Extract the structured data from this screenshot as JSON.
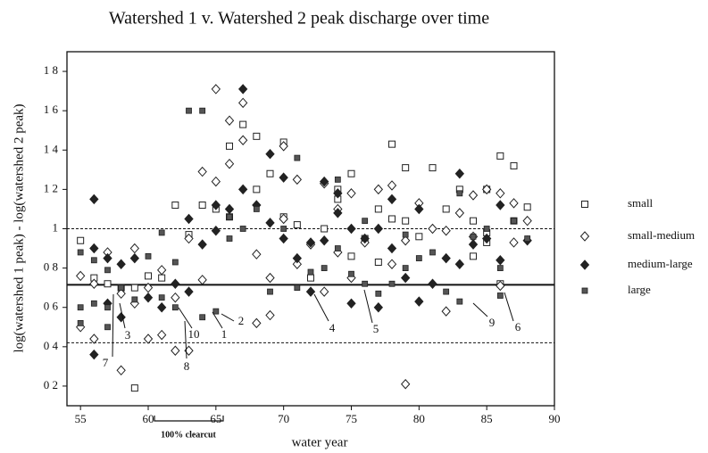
{
  "chart_data": {
    "type": "scatter",
    "title": "Watershed 1 v. Watershed 2 peak discharge over time",
    "xlabel": "water year",
    "ylabel": "log(watershed 1 peak) - log(watershed 2 peak)",
    "xlim": [
      54,
      90
    ],
    "ylim": [
      0.1,
      1.9
    ],
    "xticks": [
      55,
      60,
      65,
      70,
      75,
      80,
      85,
      90
    ],
    "yticks": [
      {
        "value": 0.2,
        "label": "0 2"
      },
      {
        "value": 0.4,
        "label": "0 4"
      },
      {
        "value": 0.6,
        "label": "0 6"
      },
      {
        "value": 0.8,
        "label": "0 8"
      },
      1,
      {
        "value": 1.2,
        "label": "1 2"
      },
      {
        "value": 1.4,
        "label": "1 4"
      },
      {
        "value": 1.6,
        "label": "1 6"
      },
      {
        "value": 1.8,
        "label": "1 8"
      }
    ],
    "legend": "right",
    "reference_lines": [
      {
        "y": 1.0,
        "style": "dashed"
      },
      {
        "y": 0.715,
        "style": "solid"
      },
      {
        "y": 0.42,
        "style": "dashed"
      }
    ],
    "annotations": [
      "7",
      "3",
      "8",
      "10",
      "1",
      "2",
      "4",
      "5",
      "9",
      "6"
    ],
    "bracket_label": "100% clearcut",
    "series": [
      {
        "name": "small",
        "marker": "open-square",
        "color": "#222",
        "x": [
          55,
          56,
          57,
          58,
          59,
          59,
          60,
          61,
          62,
          63,
          64,
          65,
          66,
          66,
          67,
          68,
          68,
          69,
          70,
          70,
          71,
          72,
          73,
          74,
          74,
          75,
          75,
          76,
          77,
          77,
          78,
          78,
          79,
          79,
          80,
          81,
          82,
          83,
          84,
          85,
          85,
          86,
          86,
          87,
          87,
          88,
          85,
          84
        ],
        "values": [
          0.94,
          0.75,
          0.72,
          0.7,
          0.19,
          0.7,
          0.76,
          0.75,
          1.12,
          0.97,
          1.12,
          1.1,
          1.42,
          1.06,
          1.53,
          1.47,
          1.2,
          1.28,
          1.44,
          1.06,
          1.02,
          0.75,
          1.0,
          1.15,
          1.2,
          1.28,
          0.86,
          0.95,
          1.1,
          0.83,
          1.43,
          1.05,
          1.31,
          1.04,
          0.96,
          1.31,
          1.1,
          1.2,
          1.04,
          1.2,
          0.93,
          1.37,
          0.72,
          1.32,
          1.04,
          1.11,
          0.98,
          0.86
        ]
      },
      {
        "name": "small-medium",
        "marker": "open-diamond",
        "color": "#222",
        "x": [
          55,
          55,
          56,
          56,
          57,
          58,
          58,
          59,
          59,
          60,
          60,
          61,
          61,
          62,
          62,
          63,
          63,
          64,
          64,
          65,
          65,
          66,
          66,
          67,
          67,
          68,
          68,
          69,
          69,
          70,
          70,
          71,
          71,
          72,
          73,
          73,
          74,
          74,
          75,
          75,
          76,
          77,
          78,
          78,
          79,
          79,
          80,
          81,
          82,
          82,
          83,
          84,
          84,
          85,
          86,
          86,
          87,
          87,
          88
        ],
        "values": [
          0.76,
          0.5,
          0.44,
          0.72,
          0.88,
          0.28,
          0.67,
          0.9,
          0.62,
          0.44,
          0.7,
          0.46,
          0.79,
          0.38,
          0.65,
          0.38,
          0.95,
          1.29,
          0.74,
          1.71,
          1.24,
          1.55,
          1.33,
          1.64,
          1.45,
          0.87,
          0.52,
          0.56,
          0.75,
          1.42,
          1.05,
          1.25,
          0.82,
          0.92,
          0.68,
          1.23,
          0.88,
          1.1,
          1.18,
          0.75,
          0.93,
          1.2,
          1.22,
          0.82,
          0.21,
          0.94,
          1.13,
          1.0,
          0.58,
          0.99,
          1.08,
          0.96,
          1.17,
          1.2,
          1.18,
          0.71,
          1.13,
          0.93,
          1.04
        ]
      },
      {
        "name": "medium-large",
        "marker": "filled-diamond",
        "color": "#222",
        "x": [
          56,
          56,
          56,
          57,
          57,
          58,
          58,
          59,
          60,
          61,
          62,
          63,
          63,
          64,
          65,
          65,
          66,
          67,
          67,
          68,
          69,
          69,
          70,
          70,
          71,
          72,
          72,
          73,
          73,
          74,
          74,
          75,
          75,
          76,
          77,
          77,
          78,
          78,
          79,
          80,
          80,
          81,
          82,
          83,
          83,
          84,
          85,
          86,
          86,
          88
        ],
        "values": [
          1.15,
          0.36,
          0.9,
          0.62,
          0.85,
          0.55,
          0.82,
          0.85,
          0.65,
          0.6,
          0.72,
          1.05,
          0.68,
          0.92,
          0.99,
          1.12,
          1.1,
          1.71,
          1.2,
          1.12,
          1.38,
          1.03,
          1.26,
          0.95,
          0.85,
          0.93,
          0.68,
          1.24,
          0.94,
          1.18,
          1.08,
          1.0,
          0.62,
          0.95,
          0.6,
          1.0,
          1.15,
          0.9,
          0.75,
          1.1,
          0.63,
          0.72,
          0.85,
          1.28,
          0.82,
          0.92,
          0.95,
          1.12,
          0.84,
          0.94
        ]
      },
      {
        "name": "large",
        "marker": "small-square",
        "color": "#555",
        "x": [
          55,
          55,
          55,
          56,
          56,
          57,
          57,
          57,
          58,
          59,
          60,
          61,
          61,
          62,
          62,
          63,
          64,
          64,
          65,
          66,
          66,
          67,
          68,
          69,
          70,
          71,
          71,
          72,
          73,
          74,
          74,
          75,
          76,
          76,
          77,
          78,
          79,
          79,
          80,
          81,
          82,
          83,
          83,
          84,
          85,
          86,
          86,
          87,
          88
        ],
        "values": [
          0.88,
          0.6,
          0.52,
          0.62,
          0.84,
          0.79,
          0.5,
          0.6,
          0.7,
          0.64,
          0.86,
          0.98,
          0.65,
          0.83,
          0.6,
          1.6,
          1.6,
          0.55,
          0.58,
          0.95,
          1.06,
          1.0,
          1.1,
          0.68,
          1.0,
          1.36,
          0.7,
          0.78,
          0.8,
          1.25,
          0.9,
          0.77,
          1.04,
          0.72,
          0.67,
          0.72,
          0.97,
          0.8,
          0.85,
          0.88,
          0.68,
          1.18,
          0.63,
          0.96,
          1.0,
          0.8,
          0.66,
          1.04,
          0.95
        ]
      }
    ]
  }
}
